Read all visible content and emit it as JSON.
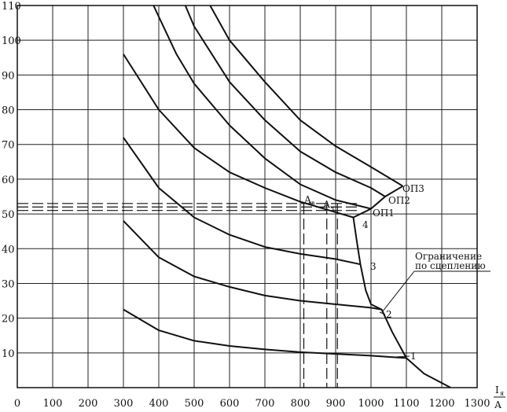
{
  "chart_data": {
    "type": "line",
    "x_ticks": [
      "0",
      "100",
      "200",
      "300",
      "400",
      "500",
      "600",
      "700",
      "800",
      "900",
      "1000",
      "1100",
      "1200",
      "1300"
    ],
    "y_ticks": [
      "10",
      "20",
      "30",
      "40",
      "50",
      "60",
      "70",
      "80",
      "90",
      "100",
      "110"
    ],
    "xlim": [
      0,
      1300
    ],
    "ylim": [
      0,
      110
    ],
    "xlabel_num": "I",
    "xlabel_sub": "я",
    "xlabel_den": "А",
    "grid": true,
    "series": [
      {
        "name": "1",
        "values": [
          [
            300,
            22.5
          ],
          [
            400,
            16.5
          ],
          [
            500,
            13.5
          ],
          [
            600,
            12
          ],
          [
            700,
            11
          ],
          [
            800,
            10.2
          ],
          [
            900,
            9.7
          ],
          [
            1000,
            9.2
          ],
          [
            1100,
            8.5
          ]
        ]
      },
      {
        "name": "2",
        "values": [
          [
            300,
            48
          ],
          [
            400,
            37.5
          ],
          [
            500,
            32
          ],
          [
            600,
            29
          ],
          [
            700,
            26.5
          ],
          [
            800,
            25
          ],
          [
            900,
            24
          ],
          [
            1000,
            23
          ],
          [
            1030,
            22.5
          ]
        ]
      },
      {
        "name": "3",
        "values": [
          [
            300,
            72
          ],
          [
            400,
            57.5
          ],
          [
            500,
            49
          ],
          [
            600,
            44
          ],
          [
            700,
            40.5
          ],
          [
            800,
            38.5
          ],
          [
            900,
            37
          ],
          [
            970,
            35.5
          ]
        ]
      },
      {
        "name": "4",
        "values": [
          [
            300,
            96
          ],
          [
            400,
            80
          ],
          [
            500,
            69
          ],
          [
            600,
            62
          ],
          [
            700,
            57.5
          ],
          [
            800,
            53.5
          ],
          [
            900,
            50.5
          ],
          [
            950,
            49
          ]
        ]
      },
      {
        "values": [
          [
            385,
            110
          ],
          [
            450,
            96
          ],
          [
            500,
            87.5
          ],
          [
            600,
            75.5
          ],
          [
            700,
            66
          ],
          [
            800,
            58.5
          ],
          [
            900,
            54
          ],
          [
            1000,
            51.5
          ]
        ]
      },
      {
        "values": [
          [
            475,
            110
          ],
          [
            500,
            104
          ],
          [
            600,
            88
          ],
          [
            700,
            77
          ],
          [
            800,
            68
          ],
          [
            900,
            62
          ],
          [
            1000,
            57.5
          ],
          [
            1040,
            55
          ]
        ]
      },
      {
        "values": [
          [
            545,
            110
          ],
          [
            600,
            100
          ],
          [
            700,
            88
          ],
          [
            800,
            77
          ],
          [
            900,
            69.5
          ],
          [
            1000,
            63.5
          ],
          [
            1090,
            58
          ]
        ]
      },
      {
        "name": "Ограничение по сцеплению",
        "values": [
          [
            950,
            49
          ],
          [
            960,
            42
          ],
          [
            970,
            35.5
          ],
          [
            985,
            28
          ],
          [
            1000,
            24
          ],
          [
            1030,
            22.5
          ],
          [
            1060,
            16
          ],
          [
            1100,
            8.5
          ],
          [
            1150,
            4
          ],
          [
            1225,
            0
          ]
        ]
      }
    ],
    "envelope": [
      [
        950,
        49
      ],
      [
        1000,
        51.5
      ],
      [
        1040,
        55
      ],
      [
        1090,
        58
      ]
    ],
    "horizontal_dashed": [
      53,
      52,
      51
    ],
    "vertical_dashed": [
      810,
      875,
      905
    ],
    "annotations": {
      "op3": "ОП3",
      "op2": "ОП2",
      "op1": "ОП1",
      "a_v": "А",
      "a_v_sub": "в",
      "a_ch": "А",
      "a_ch_sub": "ч",
      "curve_1": "1",
      "curve_2": "2",
      "curve_3": "3",
      "curve_4": "4",
      "limit_line1": "Ограничение",
      "limit_line2": "по сцеплению"
    }
  }
}
